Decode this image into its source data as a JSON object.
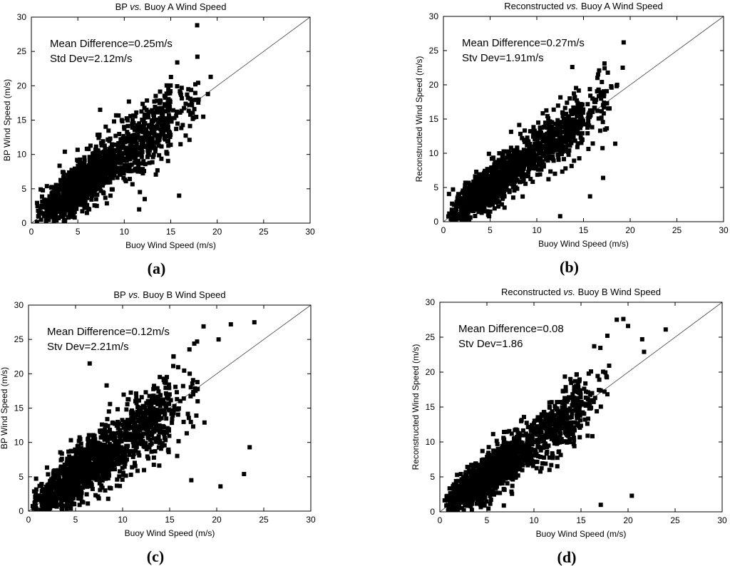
{
  "chart_data": [
    {
      "type": "scatter",
      "panel": "(a)",
      "panel_letter": "a",
      "title_parts": [
        "BP ",
        "vs.",
        " Buoy A Wind Speed"
      ],
      "xlabel": "Buoy Wind Speed (m/s)",
      "ylabel": "BP Wind Speed (m/s)",
      "xlim": [
        0,
        30
      ],
      "ylim": [
        0,
        30
      ],
      "xticks": [
        0,
        5,
        10,
        15,
        20,
        25,
        30
      ],
      "yticks": [
        0,
        5,
        10,
        15,
        20,
        25,
        30
      ],
      "annotations": [
        "Mean Difference=0.25m/s",
        "Std Dev=2.12m/s"
      ],
      "reference_line": "1:1",
      "marker": "square",
      "color": "#000000",
      "seed": 11,
      "count": 1500,
      "bias": 0.25,
      "spread": 1.9,
      "x": [
        1.5,
        2.5,
        3.0,
        4.0,
        5.0,
        6.0,
        7.0,
        8.0,
        9.0,
        10.0,
        11.0,
        12.0,
        13.0,
        14.0,
        15.0,
        16.0,
        17.0,
        18.0,
        19.0,
        7.4,
        3.6,
        10.5,
        13.7,
        15.7,
        11.6,
        19.3,
        18.5,
        12.2,
        15.9
      ],
      "y": [
        3.0,
        3.2,
        3.8,
        4.5,
        5.2,
        6.0,
        7.2,
        8.4,
        9.1,
        10.2,
        11.0,
        12.4,
        13.1,
        14.3,
        15.0,
        16.1,
        17.2,
        18.0,
        18.8,
        16.5,
        10.4,
        17.7,
        12.0,
        23.4,
        2.0,
        21.3,
        15.5,
        3.5,
        4.0
      ]
    },
    {
      "type": "scatter",
      "panel": "(b)",
      "panel_letter": "b",
      "title_parts": [
        "Reconstructed ",
        "vs.",
        " Buoy A Wind Speed"
      ],
      "xlabel": "Buoy Wind Speed (m/s)",
      "ylabel": "Reconstructed Wind Speed (m/s)",
      "xlim": [
        0,
        30
      ],
      "ylim": [
        0,
        30
      ],
      "xticks": [
        0,
        5,
        10,
        15,
        20,
        25,
        30
      ],
      "yticks": [
        0,
        5,
        10,
        15,
        20,
        25,
        30
      ],
      "annotations": [
        "Mean Difference=0.27m/s",
        "Stv Dev=1.91m/s"
      ],
      "reference_line": "1:1",
      "marker": "square",
      "color": "#000000",
      "seed": 23,
      "count": 1500,
      "bias": 0.27,
      "spread": 1.6,
      "x": [
        1.5,
        2.5,
        3.5,
        4.5,
        5.5,
        6.5,
        7.5,
        8.5,
        9.5,
        10.5,
        11.5,
        12.5,
        13.5,
        14.5,
        15.5,
        16.5,
        17.5,
        19.3,
        19.2,
        13.8,
        18.6,
        18.0,
        15.7,
        17.1,
        12.5,
        18.4
      ],
      "y": [
        3.4,
        3.9,
        4.6,
        5.1,
        6.0,
        6.9,
        7.8,
        8.7,
        9.8,
        10.5,
        11.2,
        12.6,
        13.3,
        14.5,
        15.1,
        16.2,
        17.3,
        26.2,
        22.5,
        22.6,
        20.0,
        19.6,
        3.7,
        6.4,
        0.8,
        11.4
      ]
    },
    {
      "type": "scatter",
      "panel": "(c)",
      "panel_letter": "c",
      "title_parts": [
        "BP ",
        "vs.",
        " Buoy B Wind Speed"
      ],
      "xlabel": "Buoy Wind Speed (m/s)",
      "ylabel": "BP Wind Speed (m/s)",
      "xlim": [
        0,
        30
      ],
      "ylim": [
        0,
        30
      ],
      "xticks": [
        0,
        5,
        10,
        15,
        20,
        25,
        30
      ],
      "yticks": [
        0,
        5,
        10,
        15,
        20,
        25,
        30
      ],
      "annotations": [
        "Mean Difference=0.12m/s",
        "Stv Dev=2.21m/s"
      ],
      "reference_line": "1:1",
      "marker": "square",
      "color": "#000000",
      "seed": 37,
      "count": 1600,
      "bias": 0.12,
      "spread": 2.0,
      "x": [
        1.5,
        2.5,
        3.5,
        4.5,
        5.5,
        6.5,
        7.5,
        8.5,
        9.5,
        10.5,
        11.5,
        12.5,
        13.5,
        14.5,
        15.5,
        16.5,
        17.5,
        18.6,
        21.5,
        24.0,
        20.2,
        23.5,
        22.9,
        20.4,
        6.5,
        8.3,
        18.7,
        17.3,
        15.4
      ],
      "y": [
        3.2,
        3.6,
        4.2,
        5.0,
        5.6,
        6.6,
        7.6,
        8.5,
        9.4,
        10.5,
        11.3,
        12.6,
        13.4,
        14.2,
        15.3,
        16.4,
        17.0,
        26.9,
        27.2,
        27.5,
        25.0,
        9.3,
        5.4,
        3.6,
        21.5,
        18.3,
        12.9,
        4.5,
        22.5
      ]
    },
    {
      "type": "scatter",
      "panel": "(d)",
      "panel_letter": "d",
      "title_parts": [
        "Reconstructed ",
        "vs.",
        " Buoy B Wind Speed"
      ],
      "xlabel": "Buoy Wind Speed (m/s)",
      "ylabel": "Reconstructed Wind Speed (m/s)",
      "xlim": [
        0,
        30
      ],
      "ylim": [
        0,
        30
      ],
      "xticks": [
        0,
        5,
        10,
        15,
        20,
        25,
        30
      ],
      "yticks": [
        0,
        5,
        10,
        15,
        20,
        25,
        30
      ],
      "annotations": [
        "Mean Difference=0.08",
        "Stv Dev=1.86"
      ],
      "reference_line": "1:1",
      "marker": "square",
      "color": "#000000",
      "seed": 53,
      "count": 1500,
      "bias": 0.08,
      "spread": 1.7,
      "x": [
        1.5,
        2.5,
        3.5,
        4.5,
        5.5,
        6.5,
        7.5,
        8.5,
        9.5,
        10.5,
        11.5,
        12.5,
        13.5,
        14.5,
        15.5,
        16.5,
        17.5,
        18.8,
        19.5,
        20.0,
        21.5,
        24.0,
        17.8,
        16.4,
        20.4,
        17.1,
        6.8,
        21.7
      ],
      "y": [
        3.1,
        3.8,
        4.5,
        5.3,
        6.0,
        6.7,
        7.7,
        8.6,
        9.4,
        10.3,
        11.2,
        12.4,
        13.3,
        14.6,
        15.2,
        16.3,
        17.2,
        27.5,
        27.6,
        26.6,
        24.7,
        26.1,
        25.2,
        23.7,
        2.3,
        1.0,
        0.9,
        22.9
      ]
    }
  ]
}
